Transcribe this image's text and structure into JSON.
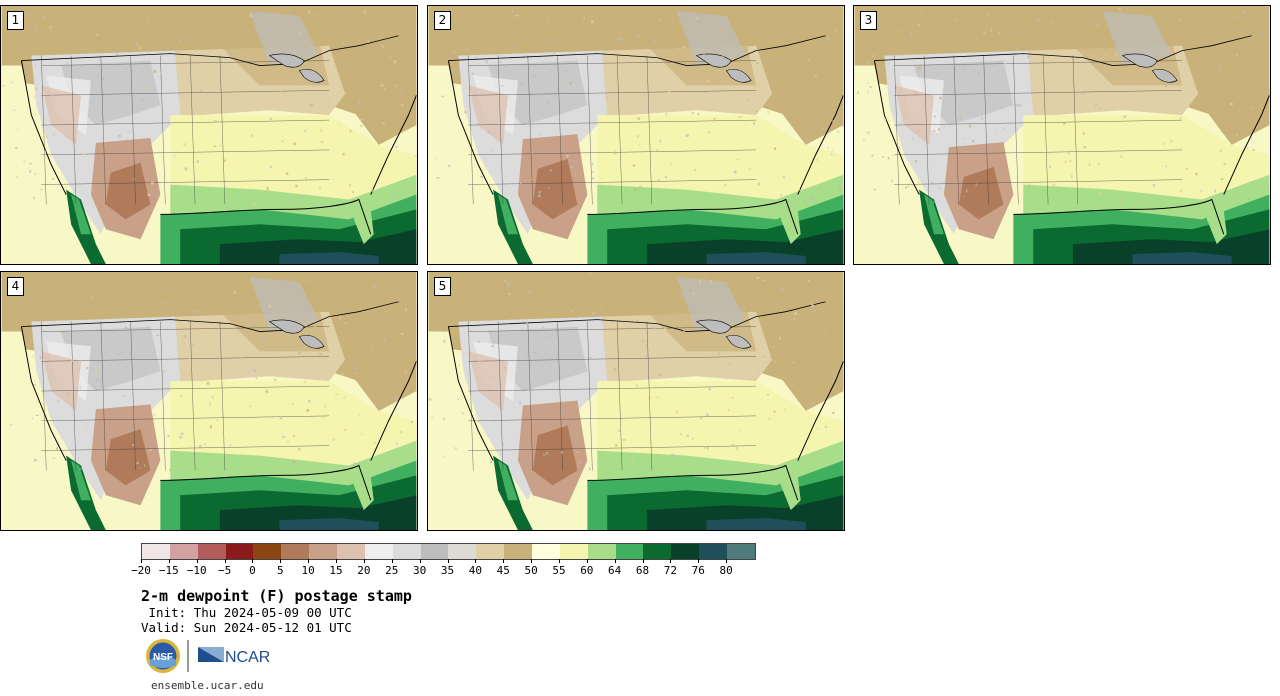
{
  "panels": [
    {
      "label": "1"
    },
    {
      "label": "2"
    },
    {
      "label": "3"
    },
    {
      "label": "4"
    },
    {
      "label": "5"
    }
  ],
  "colorbar": {
    "colors": [
      "#f3e6e6",
      "#d2a2a2",
      "#b35c5c",
      "#8b1a1a",
      "#8b4513",
      "#b07b5a",
      "#c9a088",
      "#ddc2b0",
      "#eeeeee",
      "#dcdcdc",
      "#bdbdbd",
      "#dddbd3",
      "#e0d0a8",
      "#c9b27a",
      "#ffffdd",
      "#f5f5b0",
      "#a8dd8a",
      "#40b060",
      "#0a6a30",
      "#08402a",
      "#1f4f5a",
      "#4f7b7b"
    ],
    "tick_labels": [
      "−20",
      "−15",
      "−10",
      "−5",
      "0",
      "5",
      "10",
      "15",
      "20",
      "25",
      "30",
      "35",
      "40",
      "45",
      "50",
      "55",
      "60",
      "64",
      "68",
      "72",
      "76",
      "80"
    ]
  },
  "title": "2-m dewpoint (F) postage stamp",
  "init": " Init: Thu 2024-05-09 00 UTC",
  "valid": "Valid: Sun 2024-05-12 01 UTC",
  "logos": {
    "nsf": "NSF",
    "ncar": "NCAR"
  },
  "site": "ensemble.ucar.edu"
}
